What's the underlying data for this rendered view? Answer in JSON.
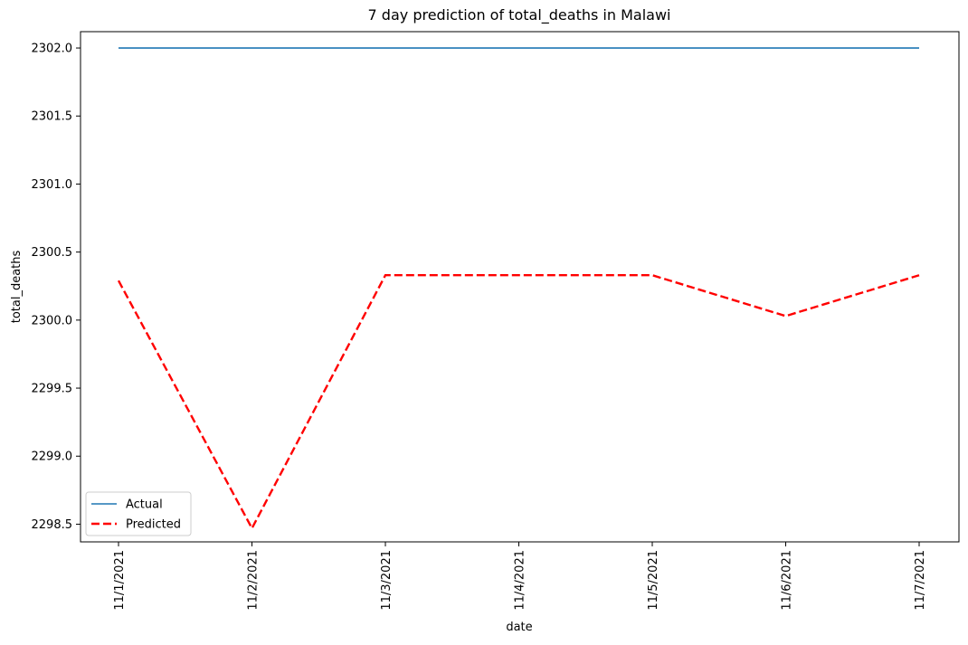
{
  "chart_data": {
    "type": "line",
    "title": "7 day prediction of total_deaths in Malawi",
    "xlabel": "date",
    "ylabel": "total_deaths",
    "categories": [
      "11/1/2021",
      "11/2/2021",
      "11/3/2021",
      "11/4/2021",
      "11/5/2021",
      "11/6/2021",
      "11/7/2021"
    ],
    "ylim": [
      2298.37,
      2302.12
    ],
    "yticks": [
      "2298.5",
      "2299.0",
      "2299.5",
      "2300.0",
      "2300.5",
      "2301.0",
      "2301.5",
      "2302.0"
    ],
    "grid": false,
    "legend_position": "lower-left",
    "series": [
      {
        "name": "Actual",
        "color": "#1f77b4",
        "style": "solid",
        "values": [
          2302.0,
          2302.0,
          2302.0,
          2302.0,
          2302.0,
          2302.0,
          2302.0
        ]
      },
      {
        "name": "Predicted",
        "color": "#ff0000",
        "style": "dashed",
        "values": [
          2300.29,
          2298.47,
          2300.33,
          2300.33,
          2300.33,
          2300.03,
          2300.33
        ]
      }
    ]
  }
}
